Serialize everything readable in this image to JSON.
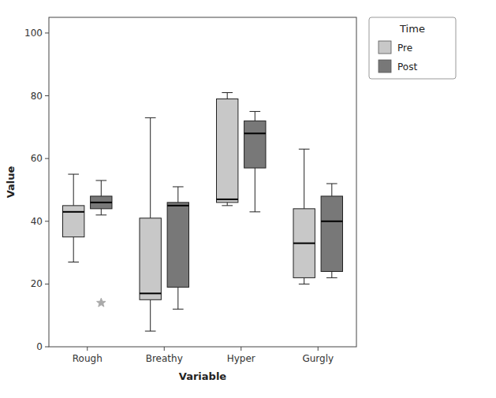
{
  "chart_data": {
    "type": "box",
    "xlabel": "Variable",
    "ylabel": "Value",
    "categories": [
      "Rough",
      "Breathy",
      "Hyper",
      "Gurgly"
    ],
    "ylim": [
      0,
      105
    ],
    "yticks": [
      0,
      20,
      40,
      60,
      80,
      100
    ],
    "grid": false,
    "legend": "right",
    "legend_title": "Time",
    "series": [
      {
        "name": "Pre",
        "color": "#c8c8c8",
        "marker": "star",
        "values": [
          {
            "whislo": 27,
            "q1": 35,
            "med": 43,
            "q3": 45,
            "whishi": 55
          },
          {
            "whislo": 5,
            "q1": 15,
            "med": 17,
            "q3": 41,
            "whishi": 73
          },
          {
            "whislo": 45,
            "q1": 46,
            "med": 47,
            "q3": 79,
            "whishi": 81
          },
          {
            "whislo": 20,
            "q1": 22,
            "med": 33,
            "q3": 44,
            "whishi": 63
          }
        ]
      },
      {
        "name": "Post",
        "color": "#787878",
        "marker": "star",
        "values": [
          {
            "whislo": 42,
            "q1": 44,
            "med": 46,
            "q3": 48,
            "whishi": 53,
            "fliers": [
              14
            ]
          },
          {
            "whislo": 12,
            "q1": 19,
            "med": 45,
            "q3": 46,
            "whishi": 51
          },
          {
            "whislo": 43,
            "q1": 57,
            "med": 68,
            "q3": 72,
            "whishi": 75
          },
          {
            "whislo": 22,
            "q1": 24,
            "med": 40,
            "q3": 48,
            "whishi": 52
          }
        ]
      }
    ]
  }
}
